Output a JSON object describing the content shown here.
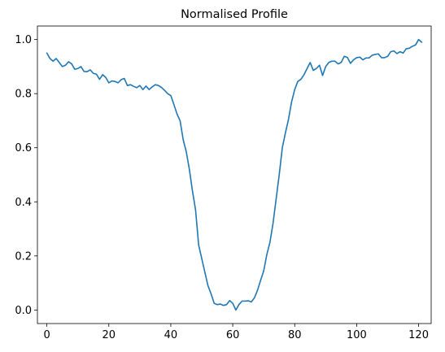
{
  "chart_data": {
    "type": "line",
    "title": "Normalised Profile",
    "xlabel": "",
    "ylabel": "",
    "xlim": [
      -3.05,
      124.05
    ],
    "ylim": [
      -0.05,
      1.05
    ],
    "xticks": [
      0,
      20,
      40,
      60,
      80,
      100,
      120
    ],
    "xtick_labels": [
      "0",
      "20",
      "40",
      "60",
      "80",
      "100",
      "120"
    ],
    "yticks": [
      0.0,
      0.2,
      0.4,
      0.6,
      0.8,
      1.0
    ],
    "ytick_labels": [
      "0.0",
      "0.2",
      "0.4",
      "0.6",
      "0.8",
      "1.0"
    ],
    "grid": false,
    "legend": "none",
    "series": [
      {
        "color": "#1f77b4",
        "x": [
          0,
          1,
          2,
          3,
          4,
          5,
          6,
          7,
          8,
          9,
          10,
          11,
          12,
          13,
          14,
          15,
          16,
          17,
          18,
          19,
          20,
          21,
          22,
          23,
          24,
          25,
          26,
          27,
          28,
          29,
          30,
          31,
          32,
          33,
          34,
          35,
          36,
          37,
          38,
          39,
          40,
          41,
          42,
          43,
          44,
          45,
          46,
          47,
          48,
          49,
          50,
          51,
          52,
          53,
          54,
          55,
          56,
          57,
          58,
          59,
          60,
          61,
          62,
          63,
          64,
          65,
          66,
          67,
          68,
          69,
          70,
          71,
          72,
          73,
          74,
          75,
          76,
          77,
          78,
          79,
          80,
          81,
          82,
          83,
          84,
          85,
          86,
          87,
          88,
          89,
          90,
          91,
          92,
          93,
          94,
          95,
          96,
          97,
          98,
          99,
          100,
          101,
          102,
          103,
          104,
          105,
          106,
          107,
          108,
          109,
          110,
          111,
          112,
          113,
          114,
          115,
          116,
          117,
          118,
          119,
          120,
          121
        ],
        "values": [
          0.95,
          0.93,
          0.92,
          0.93,
          0.915,
          0.9,
          0.905,
          0.918,
          0.91,
          0.89,
          0.893,
          0.9,
          0.882,
          0.881,
          0.888,
          0.875,
          0.872,
          0.853,
          0.87,
          0.86,
          0.84,
          0.847,
          0.845,
          0.84,
          0.852,
          0.856,
          0.83,
          0.833,
          0.827,
          0.822,
          0.83,
          0.815,
          0.828,
          0.815,
          0.825,
          0.833,
          0.83,
          0.823,
          0.812,
          0.8,
          0.793,
          0.76,
          0.725,
          0.7,
          0.63,
          0.585,
          0.52,
          0.44,
          0.37,
          0.24,
          0.19,
          0.14,
          0.09,
          0.06,
          0.025,
          0.02,
          0.022,
          0.017,
          0.02,
          0.035,
          0.025,
          0.0,
          0.02,
          0.033,
          0.033,
          0.034,
          0.03,
          0.045,
          0.073,
          0.11,
          0.145,
          0.205,
          0.25,
          0.32,
          0.41,
          0.5,
          0.6,
          0.655,
          0.705,
          0.77,
          0.815,
          0.845,
          0.853,
          0.87,
          0.893,
          0.915,
          0.886,
          0.893,
          0.905,
          0.867,
          0.9,
          0.915,
          0.92,
          0.92,
          0.91,
          0.915,
          0.938,
          0.934,
          0.912,
          0.925,
          0.933,
          0.935,
          0.925,
          0.932,
          0.932,
          0.942,
          0.945,
          0.947,
          0.933,
          0.933,
          0.938,
          0.955,
          0.958,
          0.948,
          0.955,
          0.95,
          0.966,
          0.968,
          0.975,
          0.98,
          1.0,
          0.99
        ]
      }
    ]
  }
}
